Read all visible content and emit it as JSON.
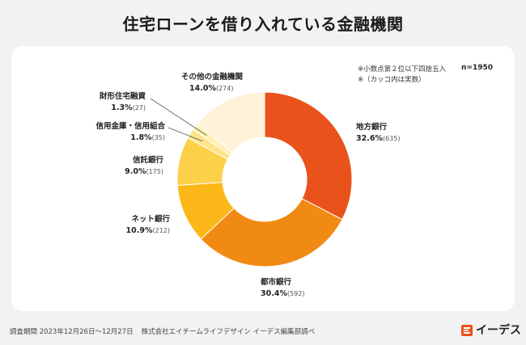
{
  "title": "住宅ローンを借り入れている金融機関",
  "notes": {
    "line1": "※小数点第２位以下四捨五入",
    "line2": "※（カッコ内は実数）",
    "sample": "n=1950"
  },
  "footer": {
    "period": "調査期間 2023年12月26日〜12月27日",
    "company": "株式会社エイチームライフデザイン イーデス編集部調べ"
  },
  "logo": {
    "text": "イーデス"
  },
  "chart_data": {
    "type": "pie",
    "donut": true,
    "categories": [
      "地方銀行",
      "都市銀行",
      "ネット銀行",
      "信託銀行",
      "信用金庫・信用組合",
      "財形住宅融資",
      "その他の金融機関"
    ],
    "values": [
      32.6,
      30.4,
      10.9,
      9.0,
      1.8,
      1.3,
      14.0
    ],
    "counts": [
      "(635)",
      "(592)",
      "(212)",
      "(175)",
      "(35)",
      "(27)",
      "(274)"
    ],
    "percent_labels": [
      "32.6%",
      "30.4%",
      "10.9%",
      "9.0%",
      "1.8%",
      "1.3%",
      "14.0%"
    ],
    "colors": [
      "#e9531b",
      "#f18a12",
      "#fbb818",
      "#fdd04a",
      "#fee486",
      "#fff0b0",
      "#fff2d8"
    ],
    "start_angle_deg": 0,
    "direction": "clockwise"
  }
}
